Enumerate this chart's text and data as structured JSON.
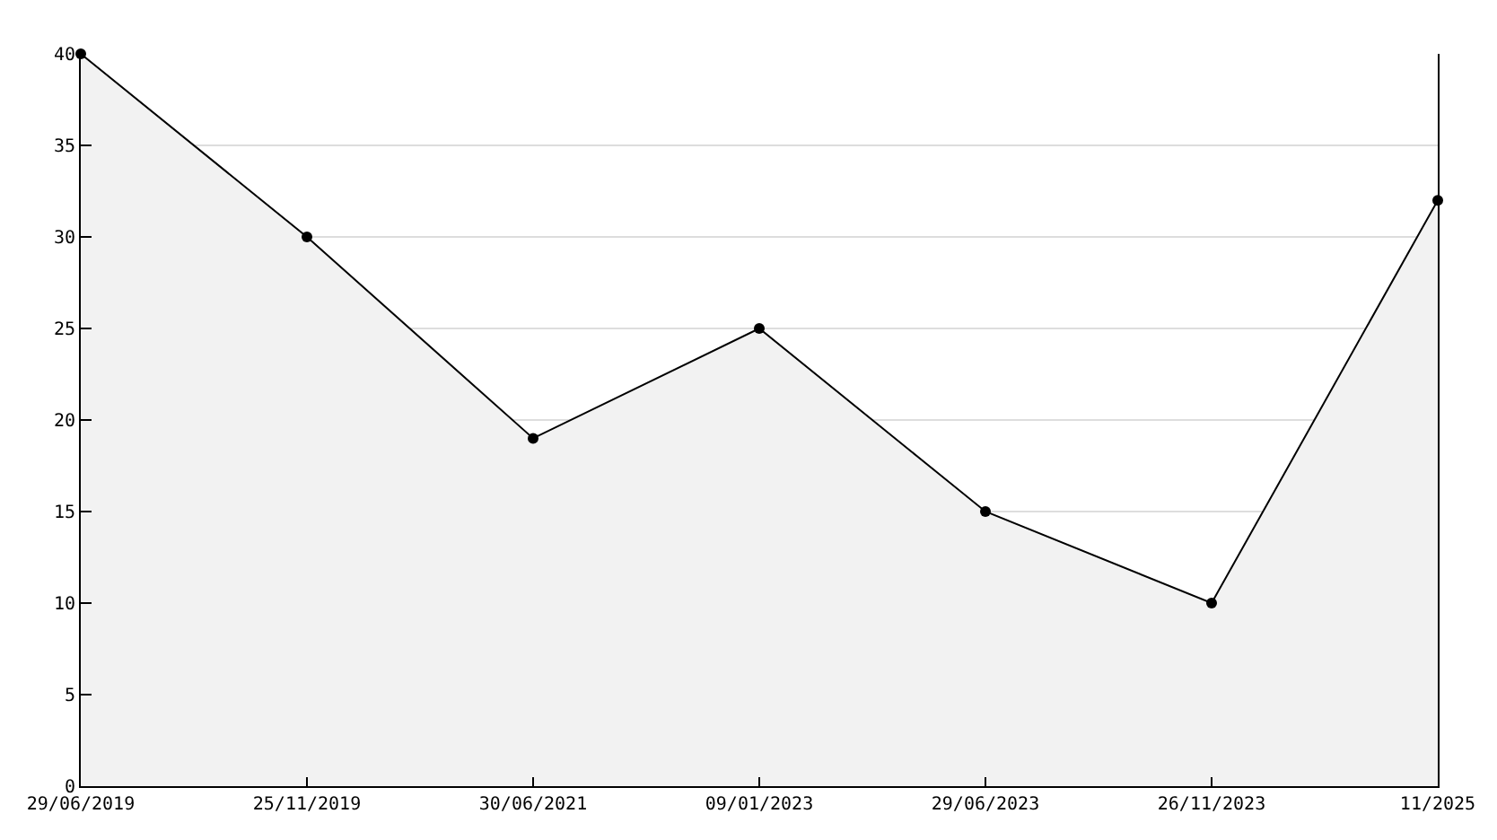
{
  "chart_data": {
    "type": "area",
    "categories": [
      "29/06/2019",
      "25/11/2019",
      "30/06/2021",
      "09/01/2023",
      "29/06/2023",
      "26/11/2023",
      "11/2025"
    ],
    "series": [
      {
        "color": "#000000",
        "values": [
          40,
          30,
          19,
          25,
          15,
          10,
          32
        ]
      }
    ],
    "ylim": [
      0,
      40
    ],
    "yticks": [
      0,
      5,
      10,
      15,
      20,
      25,
      30,
      35,
      40
    ],
    "grid": "y",
    "marker": "circle",
    "line_style": "solid"
  }
}
